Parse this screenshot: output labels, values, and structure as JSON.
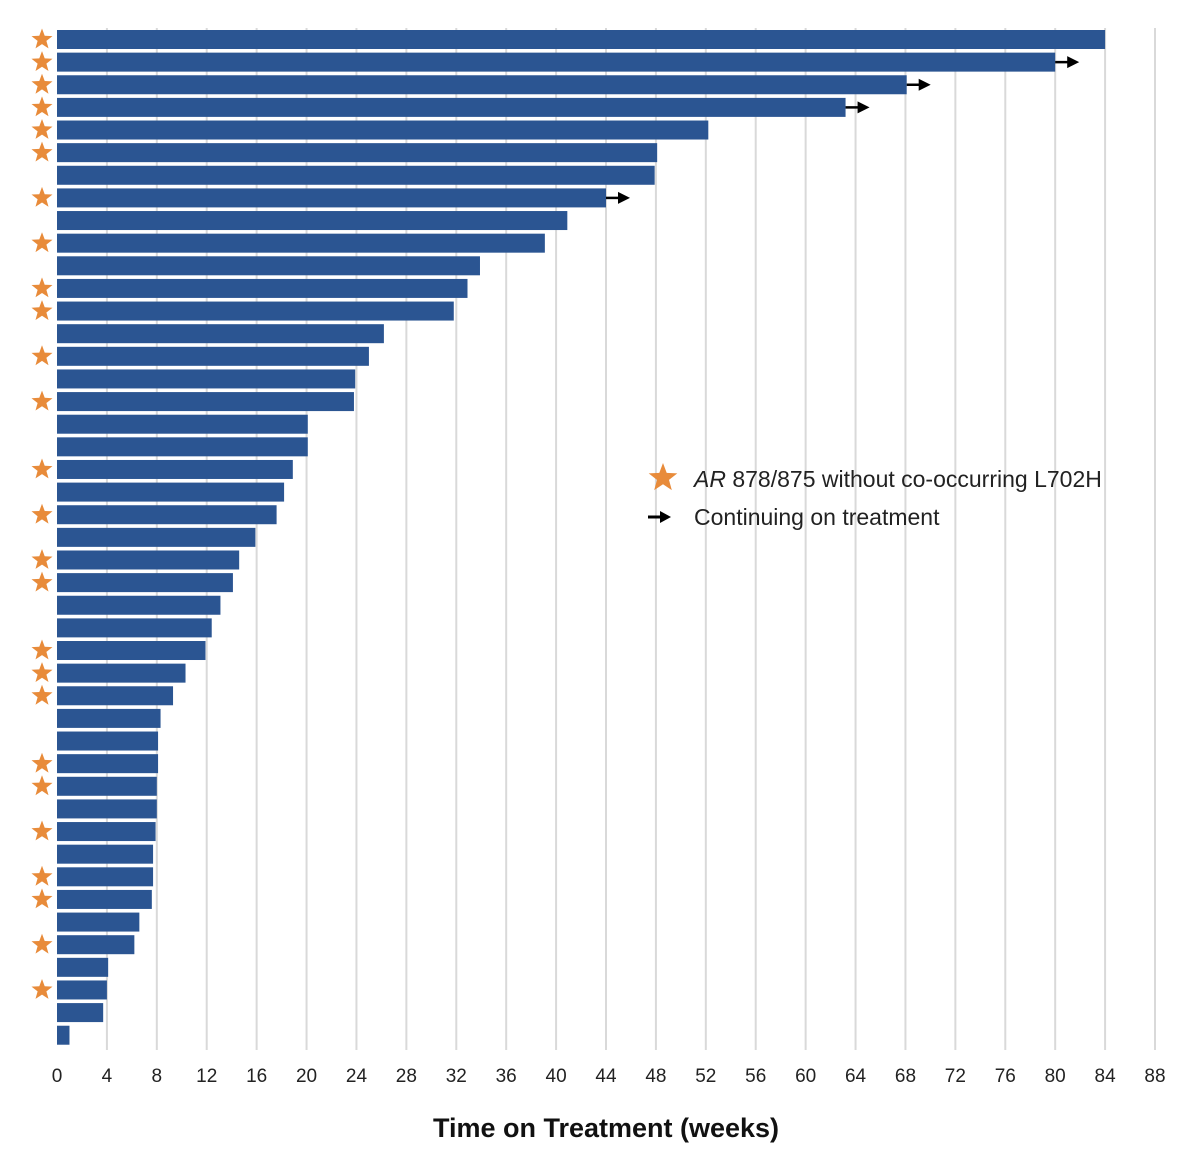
{
  "chart_data": {
    "type": "bar",
    "orientation": "horizontal",
    "title": "",
    "xlabel": "Time on Treatment (weeks)",
    "ylabel": "",
    "xlim": [
      0,
      88
    ],
    "xticks": [
      0,
      4,
      8,
      12,
      16,
      20,
      24,
      28,
      32,
      36,
      40,
      44,
      48,
      52,
      56,
      60,
      64,
      68,
      72,
      76,
      80,
      84,
      88
    ],
    "grid": "vertical",
    "legend_position": "right-center",
    "colors": {
      "bar": "#2b5592",
      "star": "#e88b3a",
      "grid": "#d9d9d9",
      "arrow": "#000000"
    },
    "legend": {
      "star_label_italic": "AR",
      "star_label_rest": " 878/875 without co-occurring L702H",
      "arrow_label": "Continuing on treatment"
    },
    "values": [
      84.0,
      80.0,
      68.1,
      63.2,
      52.2,
      48.1,
      47.9,
      44.0,
      40.9,
      39.1,
      33.9,
      32.9,
      31.8,
      26.2,
      25.0,
      23.9,
      23.8,
      20.1,
      20.1,
      18.9,
      18.2,
      17.6,
      15.9,
      14.6,
      14.1,
      13.1,
      12.4,
      11.9,
      10.3,
      9.3,
      8.3,
      8.1,
      8.1,
      8.0,
      8.0,
      7.9,
      7.7,
      7.7,
      7.6,
      6.6,
      6.2,
      4.1,
      4.0,
      3.7,
      1.0
    ],
    "star": [
      true,
      true,
      true,
      true,
      true,
      true,
      false,
      true,
      false,
      true,
      false,
      true,
      true,
      false,
      true,
      false,
      true,
      false,
      false,
      true,
      false,
      true,
      false,
      true,
      true,
      false,
      false,
      true,
      true,
      true,
      false,
      false,
      true,
      true,
      false,
      true,
      false,
      true,
      true,
      false,
      true,
      false,
      true,
      false,
      false
    ],
    "continuing": [
      false,
      true,
      true,
      true,
      false,
      false,
      false,
      true,
      false,
      false,
      false,
      false,
      false,
      false,
      false,
      false,
      false,
      false,
      false,
      false,
      false,
      false,
      false,
      false,
      false,
      false,
      false,
      false,
      false,
      false,
      false,
      false,
      false,
      false,
      false,
      false,
      false,
      false,
      false,
      false,
      false,
      false,
      false,
      false,
      false
    ]
  }
}
